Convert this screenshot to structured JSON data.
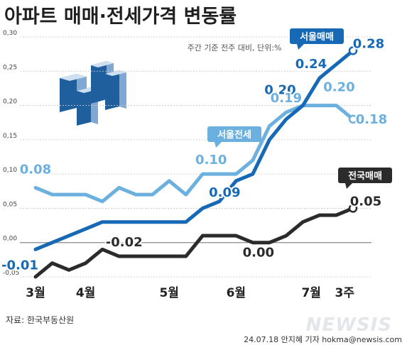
{
  "title": "아파트 매매·전세가격 변동률",
  "subtitle": "주간 기준 전주 대비, 단위:%",
  "source": "자료: 한국부동산원",
  "credit": "24.07.18 안지혜 기자 hokma@newsis.com",
  "logo": "NEWSIS",
  "chart_data": {
    "type": "line",
    "title": "아파트 매매·전세가격 변동률",
    "subtitle": "주간 기준 전주 대비, 단위:%",
    "ylim": [
      -0.05,
      0.3
    ],
    "yticks": [
      -0.05,
      0.0,
      0.05,
      0.1,
      0.15,
      0.2,
      0.25,
      0.3
    ],
    "ytick_labels": [
      "-0,05",
      "0,00",
      "0,05",
      "0,10",
      "0,15",
      "0,20",
      "0,25",
      "0,30"
    ],
    "grid": true,
    "x": [
      1,
      2,
      3,
      4,
      5,
      6,
      7,
      8,
      9,
      10,
      11,
      12,
      13,
      14,
      15,
      16,
      17,
      18,
      19,
      20
    ],
    "xtick_labels": [
      {
        "label": "3월",
        "x": 1
      },
      {
        "label": "4월",
        "x": 4
      },
      {
        "label": "5월",
        "x": 9
      },
      {
        "label": "6월",
        "x": 13
      },
      {
        "label": "7월",
        "x": 17.5
      },
      {
        "label": "3주",
        "x": 19.5
      }
    ],
    "series": [
      {
        "name": "서울매매",
        "color": "#1769b5",
        "values": [
          -0.01,
          0.0,
          0.01,
          0.02,
          0.03,
          0.03,
          0.03,
          0.03,
          0.03,
          0.03,
          0.05,
          0.06,
          0.09,
          0.1,
          0.15,
          0.18,
          0.2,
          0.24,
          0.26,
          0.28
        ],
        "labels": [
          {
            "index": 0,
            "text": "-0.01"
          },
          {
            "index": 17,
            "text": "0.24"
          },
          {
            "index": 16,
            "text": "0.20"
          },
          {
            "index": 19,
            "text": "0.28"
          },
          {
            "index": 12,
            "text": "0.09"
          }
        ]
      },
      {
        "name": "서울전세",
        "color": "#6cb0df",
        "values": [
          0.08,
          0.07,
          0.07,
          0.07,
          0.06,
          0.08,
          0.07,
          0.07,
          0.09,
          0.07,
          0.1,
          0.1,
          0.1,
          0.12,
          0.17,
          0.19,
          0.2,
          0.2,
          0.2,
          0.18
        ],
        "labels": [
          {
            "index": 0,
            "text": "0.08"
          },
          {
            "index": 10,
            "text": "0.10"
          },
          {
            "index": 15,
            "text": "0.19"
          },
          {
            "index": 18,
            "text": "0.20"
          },
          {
            "index": 19,
            "text": "0.18"
          }
        ]
      },
      {
        "name": "전국매매",
        "color": "#2b2b2b",
        "values": [
          -0.05,
          -0.03,
          -0.04,
          -0.03,
          -0.01,
          -0.02,
          -0.02,
          -0.02,
          -0.02,
          -0.02,
          0.01,
          0.01,
          0.01,
          0.0,
          0.0,
          0.01,
          0.03,
          0.04,
          0.04,
          0.05
        ],
        "labels": [
          {
            "index": 7,
            "text": "-0.02"
          },
          {
            "index": 13,
            "text": "0.00"
          },
          {
            "index": 19,
            "text": "0.05"
          }
        ]
      }
    ]
  }
}
